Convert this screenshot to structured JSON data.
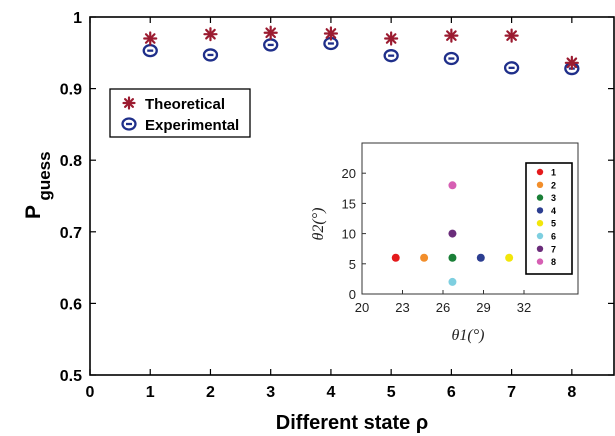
{
  "chart_data": [
    {
      "type": "scatter",
      "xlabel": "Different state ρ",
      "ylabel": "P",
      "ylabel_subscript": "guess",
      "xlim": [
        0,
        8.7
      ],
      "ylim": [
        0.5,
        1.0
      ],
      "xticks": [
        "0",
        "1",
        "2",
        "3",
        "4",
        "5",
        "6",
        "7",
        "8"
      ],
      "yticks": [
        "0.5",
        "0.6",
        "0.7",
        "0.8",
        "0.9",
        "1"
      ],
      "grid": false,
      "legend_position": "upper-left",
      "series": [
        {
          "name": "Theoretical",
          "marker": "star",
          "color": "#9b1b30",
          "x": [
            1,
            2,
            3,
            4,
            5,
            6,
            7,
            8
          ],
          "y": [
            0.97,
            0.976,
            0.978,
            0.977,
            0.97,
            0.974,
            0.974,
            0.936
          ]
        },
        {
          "name": "Experimental",
          "marker": "circle-errorbar",
          "color": "#1f2f8a",
          "x": [
            1,
            2,
            3,
            4,
            5,
            6,
            7,
            8
          ],
          "y": [
            0.953,
            0.947,
            0.961,
            0.963,
            0.946,
            0.942,
            0.929,
            0.928
          ]
        }
      ]
    },
    {
      "type": "scatter",
      "inset": true,
      "xlabel": "θ1(°)",
      "ylabel": "θ2(°)",
      "xlim": [
        20,
        36
      ],
      "ylim": [
        0,
        25
      ],
      "xticks": [
        "20",
        "23",
        "26",
        "29",
        "32"
      ],
      "yticks": [
        "0",
        "5",
        "10",
        "15",
        "20"
      ],
      "legend_position": "right",
      "points": [
        {
          "label": "1",
          "x": 22.5,
          "y": 6,
          "color": "#e41a1c"
        },
        {
          "label": "2",
          "x": 24.6,
          "y": 6,
          "color": "#f28e2b"
        },
        {
          "label": "3",
          "x": 26.7,
          "y": 6,
          "color": "#1a7f37"
        },
        {
          "label": "4",
          "x": 28.8,
          "y": 6,
          "color": "#2c3e91"
        },
        {
          "label": "5",
          "x": 30.9,
          "y": 6,
          "color": "#f2e60a"
        },
        {
          "label": "6",
          "x": 26.7,
          "y": 2,
          "color": "#7ecfe0"
        },
        {
          "label": "7",
          "x": 26.7,
          "y": 10,
          "color": "#6a2c7a"
        },
        {
          "label": "8",
          "x": 26.7,
          "y": 18,
          "color": "#d65fb3"
        }
      ]
    }
  ]
}
